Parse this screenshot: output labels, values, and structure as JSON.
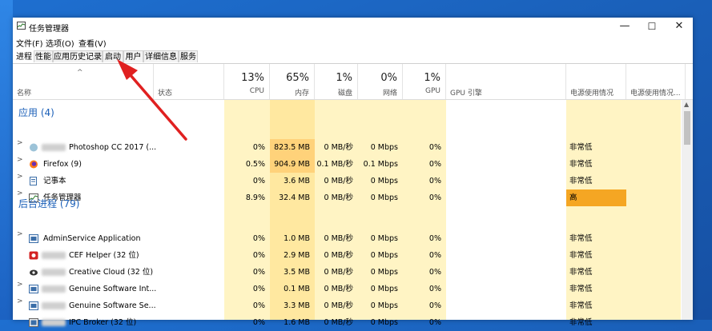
{
  "window": {
    "title": "任务管理器"
  },
  "menu": [
    "文件(F)",
    "选项(O)",
    "查看(V)"
  ],
  "tabs": [
    "进程",
    "性能",
    "应用历史记录",
    "启动",
    "用户",
    "详细信息",
    "服务"
  ],
  "header": {
    "name": "名称",
    "status": "状态",
    "cpu_pct": "13%",
    "cpu": "CPU",
    "mem_pct": "65%",
    "mem": "内存",
    "disk_pct": "1%",
    "disk": "磁盘",
    "net_pct": "0%",
    "net": "网络",
    "gpu_pct": "1%",
    "gpu": "GPU",
    "gpu_engine": "GPU 引擎",
    "power": "电源使用情况",
    "power_trend": "电源使用情况..."
  },
  "sections": {
    "apps": "应用 (4)",
    "background": "后台进程 (79)"
  },
  "apps": [
    {
      "name": "Photoshop CC 2017 (...",
      "cpu": "0%",
      "mem": "823.5 MB",
      "disk": "0 MB/秒",
      "net": "0 Mbps",
      "gpu": "0%",
      "power": "非常低",
      "icon": "photoshop-icon",
      "blur": true
    },
    {
      "name": "Firefox (9)",
      "cpu": "0.5%",
      "mem": "904.9 MB",
      "disk": "0.1 MB/秒",
      "net": "0.1 Mbps",
      "gpu": "0%",
      "power": "非常低",
      "icon": "firefox-icon",
      "blur": false
    },
    {
      "name": "记事本",
      "cpu": "0%",
      "mem": "3.6 MB",
      "disk": "0 MB/秒",
      "net": "0 Mbps",
      "gpu": "0%",
      "power": "非常低",
      "icon": "notepad-icon",
      "blur": false
    },
    {
      "name": "任务管理器",
      "cpu": "8.9%",
      "mem": "32.4 MB",
      "disk": "0 MB/秒",
      "net": "0 Mbps",
      "gpu": "0%",
      "power": "高",
      "icon": "task-manager-icon",
      "blur": false
    }
  ],
  "background": [
    {
      "name": "AdminService Application",
      "cpu": "0%",
      "mem": "1.0 MB",
      "disk": "0 MB/秒",
      "net": "0 Mbps",
      "gpu": "0%",
      "power": "非常低",
      "icon": "service-app-icon",
      "blur": false
    },
    {
      "name": "CEF Helper (32 位)",
      "cpu": "0%",
      "mem": "2.9 MB",
      "disk": "0 MB/秒",
      "net": "0 Mbps",
      "gpu": "0%",
      "power": "非常低",
      "icon": "cef-helper-icon",
      "blur": true
    },
    {
      "name": "Creative Cloud (32 位)",
      "cpu": "0%",
      "mem": "3.5 MB",
      "disk": "0 MB/秒",
      "net": "0 Mbps",
      "gpu": "0%",
      "power": "非常低",
      "icon": "creative-cloud-icon",
      "blur": true
    },
    {
      "name": "Genuine Software Int...",
      "cpu": "0%",
      "mem": "0.1 MB",
      "disk": "0 MB/秒",
      "net": "0 Mbps",
      "gpu": "0%",
      "power": "非常低",
      "icon": "service-app-icon",
      "blur": true
    },
    {
      "name": "Genuine Software Se...",
      "cpu": "0%",
      "mem": "3.3 MB",
      "disk": "0 MB/秒",
      "net": "0 Mbps",
      "gpu": "0%",
      "power": "非常低",
      "icon": "service-app-icon",
      "blur": true
    },
    {
      "name": "IPC Broker (32 位)",
      "cpu": "0%",
      "mem": "1.6 MB",
      "disk": "0 MB/秒",
      "net": "0 Mbps",
      "gpu": "0%",
      "power": "非常低",
      "icon": "ipc-broker-icon",
      "blur": true
    }
  ],
  "colors": {
    "usage_bg": "#fff4c4",
    "usage_mem": "#ffe8a0",
    "mem_high": "#ffd27a",
    "power_high": "#f5a623",
    "section": "#1a5fb8",
    "arrow": "#e02020"
  }
}
